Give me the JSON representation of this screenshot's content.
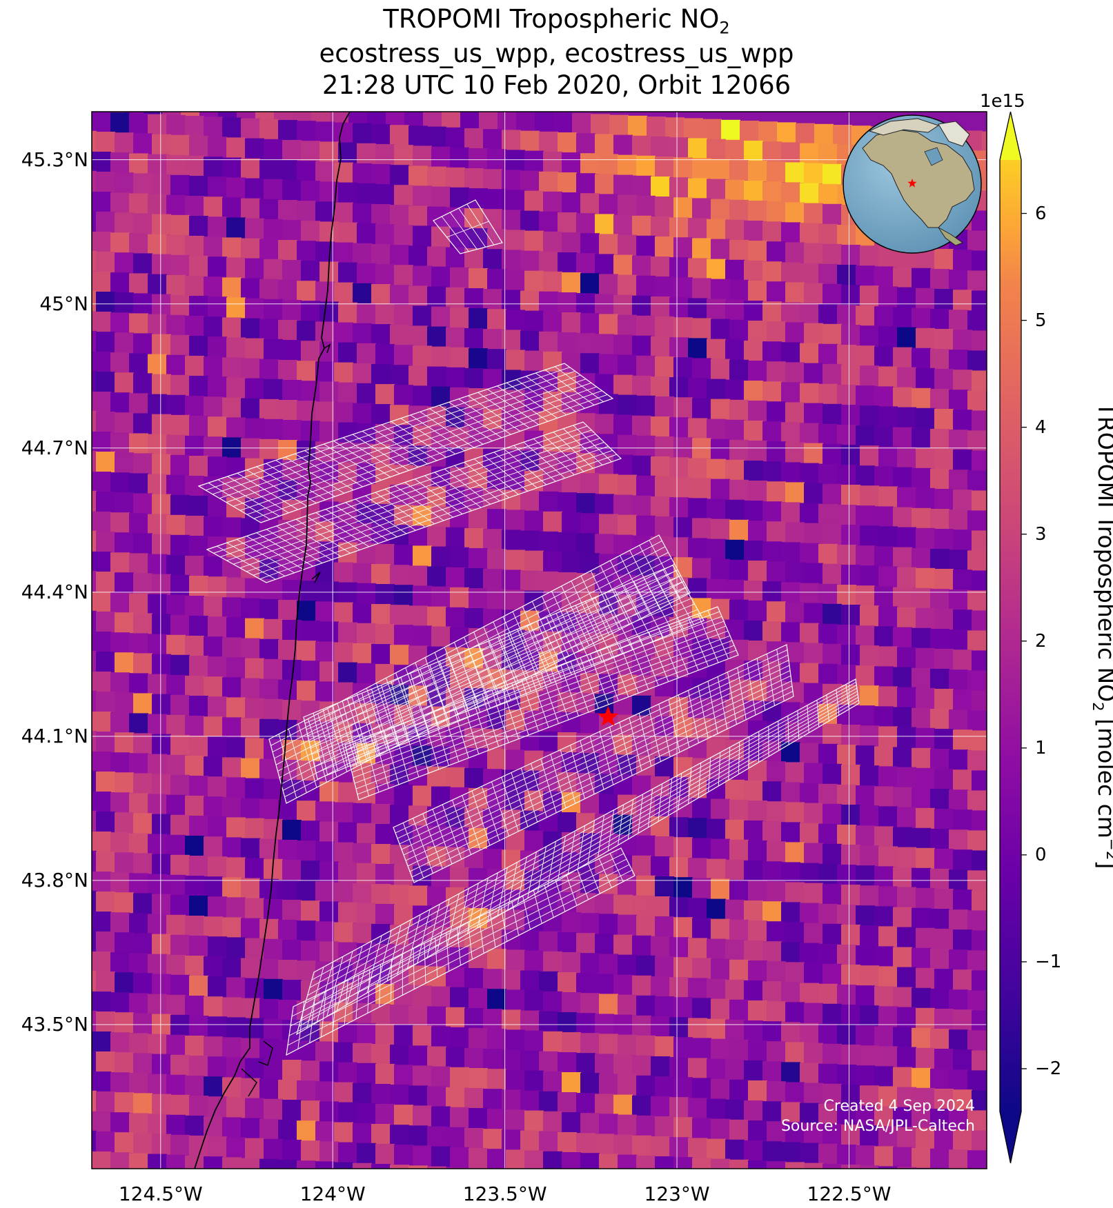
{
  "title": {
    "line1_main": "TROPOMI Tropospheric NO",
    "line1_sub": "2",
    "line2": "ecostress_us_wpp, ecostress_us_wpp",
    "line3": "21:28 UTC 10 Feb 2020, Orbit 12066"
  },
  "map": {
    "lon_range": [
      -124.7,
      -122.1
    ],
    "lat_range": [
      43.2,
      45.4
    ],
    "lat_ticks": [
      {
        "value": 45.3,
        "label": "45.3°N"
      },
      {
        "value": 45.0,
        "label": "45°N"
      },
      {
        "value": 44.7,
        "label": "44.7°N"
      },
      {
        "value": 44.4,
        "label": "44.4°N"
      },
      {
        "value": 44.1,
        "label": "44.1°N"
      },
      {
        "value": 43.8,
        "label": "43.8°N"
      },
      {
        "value": 43.5,
        "label": "43.5°N"
      }
    ],
    "lon_ticks": [
      {
        "value": -124.5,
        "label": "124.5°W"
      },
      {
        "value": -124.0,
        "label": "124°W"
      },
      {
        "value": -123.5,
        "label": "123.5°W"
      },
      {
        "value": -123.0,
        "label": "123°W"
      },
      {
        "value": -122.5,
        "label": "122.5°W"
      }
    ],
    "target_marker": {
      "lon": -123.2,
      "lat": 44.14,
      "color": "#ff0000",
      "symbol": "star"
    },
    "coastline_color": "#000000",
    "grid_color": "#ffffff",
    "footprint_color": "#ffffff",
    "inset": "globe-north-america"
  },
  "colorbar": {
    "colormap": "plasma",
    "min": -2.4,
    "max": 6.5,
    "extend": "both",
    "exponent_label": "1e15",
    "ticks": [
      {
        "value": 6,
        "label": "6"
      },
      {
        "value": 5,
        "label": "5"
      },
      {
        "value": 4,
        "label": "4"
      },
      {
        "value": 3,
        "label": "3"
      },
      {
        "value": 2,
        "label": "2"
      },
      {
        "value": 1,
        "label": "1"
      },
      {
        "value": 0,
        "label": "0"
      },
      {
        "value": -1,
        "label": "−1"
      },
      {
        "value": -2,
        "label": "−2"
      }
    ],
    "label_main": "TROPOMI Tropospheric NO",
    "label_sub": "2",
    "label_unit": " [molec cm",
    "label_sup": "−2",
    "label_end": "]"
  },
  "credits": {
    "line1": "Created 4 Sep 2024",
    "line2": "Source: NASA/JPL-Caltech"
  }
}
